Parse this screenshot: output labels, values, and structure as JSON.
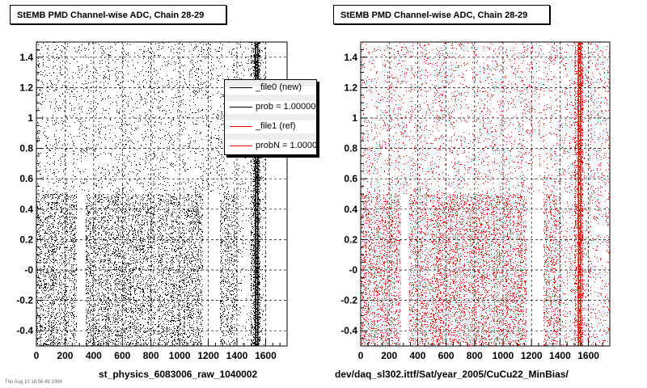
{
  "footer": {
    "faint_text": "Thu Aug 10 18:56:49 2006"
  },
  "panels": [
    {
      "title": "StEMB PMD Channel-wise ADC, Chain 28-29",
      "xlabel": "st_physics_6083006_raw_1040002",
      "color": "#000000"
    },
    {
      "title": "StEMB PMD Channel-wise ADC, Chain 28-29",
      "xlabel": "dev/daq_sl302.ittf/Sat/year_2005/CuCu22_MinBias/",
      "color": "#ff0000"
    }
  ],
  "legend": {
    "entries": [
      {
        "label": "_file0 (new)",
        "color": "#000000"
      },
      {
        "label": "prob = 1.000000",
        "color": "#000000"
      },
      {
        "label": "_file1 (ref)",
        "color": "#ff0000"
      },
      {
        "label": "probN = 1.000000",
        "color": "#ff0000"
      }
    ]
  },
  "chart_data": [
    {
      "type": "scatter",
      "title": "StEMB PMD Channel-wise ADC, Chain 28-29",
      "xlabel": "st_physics_6083006_raw_1040002",
      "ylabel": "",
      "xlim": [
        0,
        1750
      ],
      "ylim": [
        -0.5,
        1.5
      ],
      "x_ticks": [
        0,
        200,
        400,
        600,
        800,
        1000,
        1200,
        1400,
        1600
      ],
      "y_ticks": [
        -0.4,
        -0.2,
        0,
        0.2,
        0.4,
        0.6,
        0.8,
        1,
        1.2,
        1.4
      ],
      "y_tick_labels": [
        "-0.4",
        "-0.2",
        "-0",
        "0.2",
        "0.4",
        "0.6",
        "0.8",
        "1",
        "1.2",
        "1.4"
      ],
      "x_tick_labels": [
        "0",
        "200",
        "400",
        "600",
        "800",
        "1000",
        "1200",
        "1400",
        "1600"
      ],
      "grid": true,
      "series": [
        {
          "name": "_file0 (new)",
          "color": "#000000"
        }
      ],
      "dense_columns": [
        {
          "x_range": [
            0,
            1600
          ],
          "y_range": [
            -0.5,
            1.5
          ],
          "density": "medium"
        },
        {
          "x_range": [
            0,
            280
          ],
          "y_range": [
            -0.5,
            0.5
          ],
          "density": "high"
        },
        {
          "x_range": [
            340,
            1160
          ],
          "y_range": [
            -0.5,
            0.5
          ],
          "density": "high"
        },
        {
          "x_range": [
            1280,
            1400
          ],
          "y_range": [
            -0.5,
            0.5
          ],
          "density": "high"
        },
        {
          "x_range": [
            1500,
            1560
          ],
          "y_range": [
            -0.5,
            1.5
          ],
          "density": "very high"
        }
      ],
      "empty_regions": [
        {
          "x_range": [
            1160,
            1280
          ],
          "y_range": [
            -0.5,
            0.5
          ]
        },
        {
          "x_range": [
            280,
            340
          ],
          "y_range": [
            -0.5,
            0.5
          ]
        }
      ]
    },
    {
      "type": "scatter",
      "title": "StEMB PMD Channel-wise ADC, Chain 28-29",
      "xlabel": "dev/daq_sl302.ittf/Sat/year_2005/CuCu22_MinBias/",
      "ylabel": "",
      "xlim": [
        0,
        1750
      ],
      "ylim": [
        -0.5,
        1.5
      ],
      "x_ticks": [
        0,
        200,
        400,
        600,
        800,
        1000,
        1200,
        1400,
        1600
      ],
      "y_ticks": [
        -0.4,
        -0.2,
        0,
        0.2,
        0.4,
        0.6,
        0.8,
        1,
        1.2,
        1.4
      ],
      "y_tick_labels": [
        "-0.4",
        "-0.2",
        "-0",
        "0.2",
        "0.4",
        "0.6",
        "0.8",
        "1",
        "1.2",
        "1.4"
      ],
      "x_tick_labels": [
        "0",
        "200",
        "400",
        "600",
        "800",
        "1000",
        "1200",
        "1400",
        "1600"
      ],
      "grid": true,
      "series": [
        {
          "name": "_file1 (ref)",
          "color": "#ff0000"
        }
      ],
      "dense_columns": [
        {
          "x_range": [
            0,
            1750
          ],
          "y_range": [
            -0.5,
            1.5
          ],
          "density": "medium"
        },
        {
          "x_range": [
            0,
            280
          ],
          "y_range": [
            -0.5,
            0.5
          ],
          "density": "high"
        },
        {
          "x_range": [
            340,
            1160
          ],
          "y_range": [
            -0.5,
            0.5
          ],
          "density": "high"
        },
        {
          "x_range": [
            1280,
            1400
          ],
          "y_range": [
            -0.5,
            0.5
          ],
          "density": "high"
        },
        {
          "x_range": [
            1500,
            1560
          ],
          "y_range": [
            -0.5,
            1.5
          ],
          "density": "very high"
        }
      ],
      "empty_regions": [
        {
          "x_range": [
            1160,
            1280
          ],
          "y_range": [
            -0.5,
            0.5
          ]
        },
        {
          "x_range": [
            280,
            340
          ],
          "y_range": [
            -0.5,
            0.5
          ]
        }
      ]
    }
  ]
}
